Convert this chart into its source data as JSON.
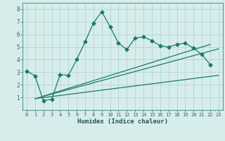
{
  "xlabel": "Humidex (Indice chaleur)",
  "bg_color": "#d6edec",
  "grid_color": "#b8d8d6",
  "line_color": "#1a7a6a",
  "xlim": [
    -0.5,
    23.5
  ],
  "ylim": [
    0,
    8.5
  ],
  "xticks": [
    0,
    1,
    2,
    3,
    4,
    5,
    6,
    7,
    8,
    9,
    10,
    11,
    12,
    13,
    14,
    15,
    16,
    17,
    18,
    19,
    20,
    21,
    22,
    23
  ],
  "yticks": [
    1,
    2,
    3,
    4,
    5,
    6,
    7,
    8
  ],
  "main_x": [
    0,
    1,
    2,
    3,
    4,
    5,
    6,
    7,
    8,
    9,
    10,
    11,
    12,
    13,
    14,
    15,
    16,
    17,
    18,
    19,
    20,
    21,
    22
  ],
  "main_y": [
    3.1,
    2.7,
    0.75,
    0.85,
    2.8,
    2.75,
    4.0,
    5.4,
    6.9,
    7.8,
    6.6,
    5.3,
    4.8,
    5.7,
    5.8,
    5.5,
    5.1,
    5.0,
    5.2,
    5.3,
    4.9,
    4.4,
    3.6
  ],
  "line2_x": [
    1,
    23
  ],
  "line2_y": [
    0.9,
    4.85
  ],
  "line3_x": [
    1,
    23
  ],
  "line3_y": [
    0.9,
    2.75
  ],
  "line4_x": [
    2,
    22
  ],
  "line4_y": [
    1.1,
    5.2
  ]
}
